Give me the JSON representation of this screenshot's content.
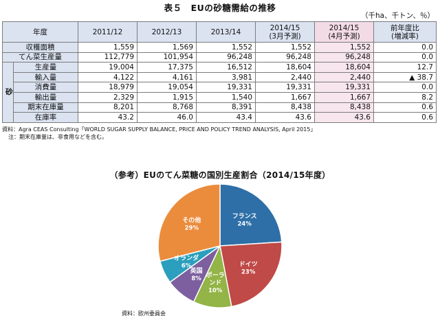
{
  "title": "表５　EUの砂糖需給の推移",
  "unit": "（千ha、千トン、％）",
  "table": {
    "header_label": "年度",
    "columns": [
      "2011/12",
      "2012/13",
      "2013/14",
      "2014/15\n(3月予測)",
      "2014/15\n(4月予測)",
      "前年度比\n(増減率)"
    ],
    "sugar_group_label": "砂糖",
    "rows_top": [
      {
        "label": "収穫面積",
        "values": [
          "1,559",
          "1,569",
          "1,552",
          "1,552",
          "1,552",
          "0.0"
        ]
      },
      {
        "label": "てん菜生産量",
        "values": [
          "112,779",
          "101,954",
          "96,248",
          "96,248",
          "96,248",
          "0.0"
        ]
      }
    ],
    "rows_sugar": [
      {
        "label": "生産量",
        "values": [
          "19,004",
          "17,375",
          "16,512",
          "18,604",
          "18,604",
          "12.7"
        ]
      },
      {
        "label": "輸入量",
        "values": [
          "4,122",
          "4,161",
          "3,981",
          "2,440",
          "2,440",
          "▲ 38.7"
        ]
      },
      {
        "label": "消費量",
        "values": [
          "18,979",
          "19,054",
          "19,331",
          "19,331",
          "19,331",
          "0.0"
        ]
      },
      {
        "label": "輸出量",
        "values": [
          "2,329",
          "1,915",
          "1,540",
          "1,667",
          "1,667",
          "8.2"
        ]
      },
      {
        "label": "期末在庫量",
        "values": [
          "8,201",
          "8,768",
          "8,391",
          "8,438",
          "8,438",
          "0.6"
        ]
      },
      {
        "label": "在庫率",
        "values": [
          "43.2",
          "46.0",
          "43.4",
          "43.6",
          "43.6",
          "0.6"
        ]
      }
    ]
  },
  "notes": {
    "source": "資料：Agra CEAS Consulting「WORLD SUGAR SUPPLY BALANCE, PRICE AND POLICY TREND ANALYSIS, April 2015」",
    "note": "注：期末在庫量は、非食用などを含む。"
  },
  "chart_data": {
    "type": "pie",
    "title": "（参考）EUのてん菜糖の国別生産割合（2014/15年度）",
    "slices": [
      {
        "name": "フランス",
        "value": 24,
        "label": "24%",
        "color": "#2e6fa7"
      },
      {
        "name": "ドイツ",
        "value": 23,
        "label": "23%",
        "color": "#bf4a47"
      },
      {
        "name": "ポーランド",
        "value": 10,
        "label": "10%",
        "color": "#93b446"
      },
      {
        "name": "英国",
        "value": 8,
        "label": "8%",
        "color": "#7d5f9f"
      },
      {
        "name": "オランダ",
        "value": 6,
        "label": "6%",
        "color": "#2b9fbd"
      },
      {
        "name": "その他",
        "value": 29,
        "label": "29%",
        "color": "#eb8c3c"
      }
    ],
    "source": "資料：欧州委員会"
  },
  "colors": {
    "header_bg": "#dbe3f1",
    "forecast_bg": "#f3dbe6",
    "forecast_cell_bg": "#f8e6ee",
    "border": "#7a7a7a"
  }
}
